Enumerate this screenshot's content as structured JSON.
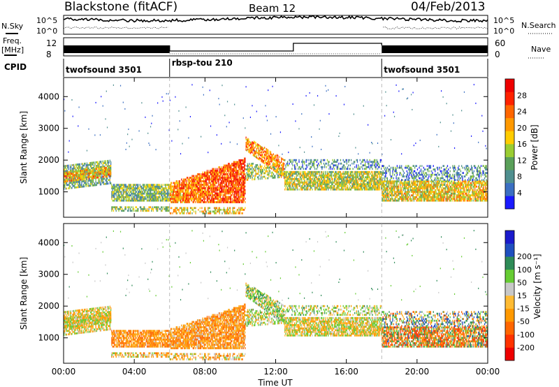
{
  "header": {
    "station": "Blackstone (fitACF)",
    "beam": "Beam 12",
    "date": "04/Feb/2013"
  },
  "top_panels": {
    "nsky_label": "N.Sky",
    "nsky_ticks": [
      "10^5",
      "10^0"
    ],
    "nsearch_label": "N.Search",
    "nsearch_ticks": [
      "10^5",
      "10^0"
    ],
    "freq_label": "Freq.",
    "freq_unit": "[MHz]",
    "freq_ticks": [
      "12",
      "8"
    ],
    "nave_label": "Nave",
    "nave_ticks": [
      "60",
      "0"
    ],
    "cpid_label": "CPID"
  },
  "cpid_segments": [
    {
      "label": "twofsound 3501",
      "start": 0,
      "end": 6
    },
    {
      "label": "rbsp-tou 210",
      "start": 6,
      "end": 18
    },
    {
      "label": "twofsound 3501",
      "start": 18,
      "end": 24
    }
  ],
  "colors": {
    "power": [
      "#1a1aff",
      "#3b6fc2",
      "#4f8f8f",
      "#5aa05a",
      "#9acd32",
      "#ffcc00",
      "#ff9900",
      "#ff6600",
      "#ff2200",
      "#ee0000"
    ],
    "velocity": [
      "#ee0000",
      "#ff3300",
      "#ff6600",
      "#ff9900",
      "#ffbb33",
      "#c8c8c8",
      "#66cc33",
      "#2e8b57",
      "#1f4fbf",
      "#1a1acc"
    ]
  },
  "chart_data": [
    {
      "type": "heatmap",
      "name": "power",
      "ylabel": "Slant Range [km]",
      "yticks": [
        1000,
        2000,
        3000,
        4000
      ],
      "ylim": [
        200,
        4600
      ],
      "xlim": [
        0,
        24
      ],
      "colorbar_label": "Power [dB]",
      "colorbar_ticks": [
        4,
        8,
        12,
        16,
        20,
        24,
        28
      ],
      "colorbar_range": [
        0,
        32
      ]
    },
    {
      "type": "heatmap",
      "name": "velocity",
      "ylabel": "Slant Range [km]",
      "yticks": [
        1000,
        2000,
        3000,
        4000
      ],
      "ylim": [
        200,
        4600
      ],
      "xlim": [
        0,
        24
      ],
      "colorbar_label": "Velocity [m s⁻¹]",
      "colorbar_ticks": [
        -200,
        -100,
        -50,
        -15,
        15,
        50,
        100,
        200
      ],
      "xticks": [
        "00:00",
        "04:00",
        "08:00",
        "12:00",
        "16:00",
        "20:00",
        "00:00"
      ],
      "xlabel": "Time UT"
    }
  ]
}
